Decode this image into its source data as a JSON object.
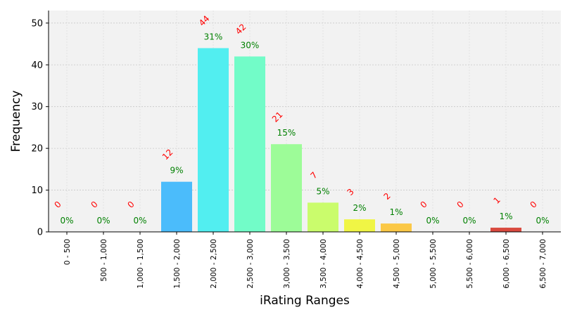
{
  "chart_data": {
    "type": "bar",
    "title": "",
    "xlabel": "iRating Ranges",
    "ylabel": "Frequency",
    "ylim": [
      0,
      53
    ],
    "yticks": [
      0,
      10,
      20,
      30,
      40,
      50
    ],
    "grid": true,
    "legend": "none",
    "categories": [
      "0 - 500",
      "500 - 1,000",
      "1,000 - 1,500",
      "1,500 - 2,000",
      "2,000 - 2,500",
      "2,500 - 3,000",
      "3,000 - 3,500",
      "3,500 - 4,000",
      "4,000 - 4,500",
      "4,500 - 5,000",
      "5,000 - 5,500",
      "5,500 - 6,000",
      "6,000 - 6,500",
      "6,500 - 7,000"
    ],
    "values": [
      0,
      0,
      0,
      12,
      44,
      42,
      21,
      7,
      3,
      2,
      0,
      0,
      1,
      0
    ],
    "percent_labels": [
      "0%",
      "0%",
      "0%",
      "9%",
      "31%",
      "30%",
      "15%",
      "5%",
      "2%",
      "1%",
      "0%",
      "0%",
      "1%",
      "0%"
    ],
    "count_labels": [
      "0",
      "0",
      "0",
      "12",
      "44",
      "42",
      "21",
      "7",
      "3",
      "2",
      "0",
      "0",
      "1",
      "0"
    ],
    "colors": [
      "#3a54e0",
      "#3a7ef0",
      "#3aa4f5",
      "#4bbcfb",
      "#52eef0",
      "#72fcc8",
      "#9dfc98",
      "#cafc6c",
      "#f0f545",
      "#fbc846",
      "#fb9a3c",
      "#f56a33",
      "#d94a3f",
      "#b03030"
    ],
    "count_label_color": "#ff0000",
    "percent_label_color": "#008000",
    "plot_background": "#f2f2f2"
  }
}
